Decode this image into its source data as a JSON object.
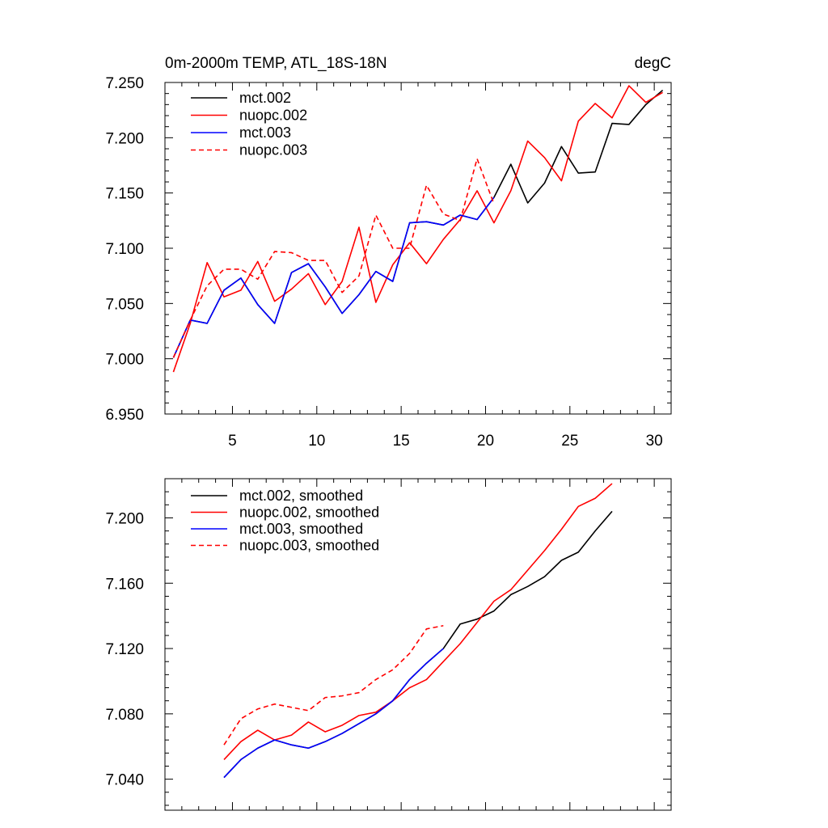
{
  "chart_data": [
    {
      "type": "line",
      "title": "0m-2000m TEMP, ATL_18S-18N",
      "units_label": "degC",
      "xlabel": "",
      "ylabel": "",
      "xlim": [
        1,
        31
      ],
      "ylim": [
        6.95,
        7.25
      ],
      "x_major_ticks": [
        5,
        10,
        15,
        20,
        25,
        30
      ],
      "x_tick_labels": [
        "5",
        "10",
        "15",
        "20",
        "25",
        "30"
      ],
      "y_major_ticks": [
        6.95,
        7.0,
        7.05,
        7.1,
        7.15,
        7.2,
        7.25
      ],
      "y_tick_labels": [
        "6.950",
        "7.000",
        "7.050",
        "7.100",
        "7.150",
        "7.200",
        "7.250"
      ],
      "legend_position": "top-left",
      "series": [
        {
          "name": "mct.002",
          "color": "#000000",
          "dash": "solid",
          "x": [
            1.5,
            2.5,
            3.5,
            4.5,
            5.5,
            6.5,
            7.5,
            8.5,
            9.5,
            10.5,
            11.5,
            12.5,
            13.5,
            14.5,
            15.5,
            16.5,
            17.5,
            18.5,
            19.5,
            20.5,
            21.5,
            22.5,
            23.5,
            24.5,
            25.5,
            26.5,
            27.5,
            28.5,
            29.5,
            30.5
          ],
          "values": [
            7.001,
            7.035,
            7.032,
            7.062,
            7.073,
            7.049,
            7.032,
            7.078,
            7.086,
            7.065,
            7.041,
            7.058,
            7.079,
            7.07,
            7.123,
            7.124,
            7.121,
            7.13,
            7.126,
            7.146,
            7.176,
            7.141,
            7.159,
            7.192,
            7.168,
            7.169,
            7.213,
            7.212,
            7.23,
            7.243
          ]
        },
        {
          "name": "nuopc.002",
          "color": "#ff0000",
          "dash": "solid",
          "x": [
            1.5,
            2.5,
            3.5,
            4.5,
            5.5,
            6.5,
            7.5,
            8.5,
            9.5,
            10.5,
            11.5,
            12.5,
            13.5,
            14.5,
            15.5,
            16.5,
            17.5,
            18.5,
            19.5,
            20.5,
            21.5,
            22.5,
            23.5,
            24.5,
            25.5,
            26.5,
            27.5,
            28.5,
            29.5,
            30.5
          ],
          "values": [
            6.988,
            7.032,
            7.087,
            7.056,
            7.062,
            7.088,
            7.052,
            7.063,
            7.077,
            7.049,
            7.07,
            7.119,
            7.051,
            7.085,
            7.105,
            7.086,
            7.108,
            7.126,
            7.152,
            7.123,
            7.152,
            7.197,
            7.182,
            7.161,
            7.215,
            7.231,
            7.218,
            7.247,
            7.232,
            7.241
          ]
        },
        {
          "name": "mct.003",
          "color": "#0000ff",
          "dash": "solid",
          "x": [
            1.5,
            2.5,
            3.5,
            4.5,
            5.5,
            6.5,
            7.5,
            8.5,
            9.5,
            10.5,
            11.5,
            12.5,
            13.5,
            14.5,
            15.5,
            16.5,
            17.5,
            18.5,
            19.5,
            20.5
          ],
          "values": [
            7.001,
            7.035,
            7.032,
            7.062,
            7.073,
            7.049,
            7.032,
            7.078,
            7.086,
            7.065,
            7.041,
            7.058,
            7.079,
            7.07,
            7.123,
            7.124,
            7.121,
            7.13,
            7.126,
            7.146
          ]
        },
        {
          "name": "nuopc.003",
          "color": "#ff0000",
          "dash": "dashed",
          "x": [
            1.5,
            2.5,
            3.5,
            4.5,
            5.5,
            6.5,
            7.5,
            8.5,
            9.5,
            10.5,
            11.5,
            12.5,
            13.5,
            14.5,
            15.5,
            16.5,
            17.5,
            18.5,
            19.5,
            20.5
          ],
          "values": [
            7.001,
            7.035,
            7.066,
            7.081,
            7.081,
            7.072,
            7.097,
            7.096,
            7.089,
            7.089,
            7.06,
            7.075,
            7.13,
            7.1,
            7.1,
            7.157,
            7.131,
            7.125,
            7.181,
            7.14
          ]
        }
      ]
    },
    {
      "type": "line",
      "title": "",
      "xlabel": "",
      "ylabel": "",
      "xlim": [
        1,
        31
      ],
      "ylim": [
        7.021,
        7.224
      ],
      "x_major_ticks": [
        5,
        10,
        15,
        20,
        25,
        30
      ],
      "x_tick_labels": [],
      "y_major_ticks": [
        7.04,
        7.08,
        7.12,
        7.16,
        7.2
      ],
      "y_tick_labels": [
        "7.040",
        "7.080",
        "7.120",
        "7.160",
        "7.200"
      ],
      "legend_position": "top-left",
      "series": [
        {
          "name": "mct.002, smoothed",
          "color": "#000000",
          "dash": "solid",
          "x": [
            4.5,
            5.5,
            6.5,
            7.5,
            8.5,
            9.5,
            10.5,
            11.5,
            12.5,
            13.5,
            14.5,
            15.5,
            16.5,
            17.5,
            18.5,
            19.5,
            20.5,
            21.5,
            22.5,
            23.5,
            24.5,
            25.5,
            26.5,
            27.5
          ],
          "values": [
            7.041,
            7.052,
            7.059,
            7.064,
            7.061,
            7.059,
            7.063,
            7.068,
            7.074,
            7.08,
            7.088,
            7.101,
            7.111,
            7.12,
            7.135,
            7.138,
            7.143,
            7.153,
            7.158,
            7.164,
            7.174,
            7.179,
            7.192,
            7.204
          ]
        },
        {
          "name": "nuopc.002, smoothed",
          "color": "#ff0000",
          "dash": "solid",
          "x": [
            4.5,
            5.5,
            6.5,
            7.5,
            8.5,
            9.5,
            10.5,
            11.5,
            12.5,
            13.5,
            14.5,
            15.5,
            16.5,
            17.5,
            18.5,
            19.5,
            20.5,
            21.5,
            22.5,
            23.5,
            24.5,
            25.5,
            26.5,
            27.5
          ],
          "values": [
            7.052,
            7.063,
            7.07,
            7.064,
            7.067,
            7.075,
            7.069,
            7.073,
            7.079,
            7.081,
            7.088,
            7.096,
            7.101,
            7.112,
            7.123,
            7.136,
            7.149,
            7.156,
            7.168,
            7.18,
            7.193,
            7.207,
            7.212,
            7.221
          ]
        },
        {
          "name": "mct.003, smoothed",
          "color": "#0000ff",
          "dash": "solid",
          "x": [
            4.5,
            5.5,
            6.5,
            7.5,
            8.5,
            9.5,
            10.5,
            11.5,
            12.5,
            13.5,
            14.5,
            15.5,
            16.5,
            17.5
          ],
          "values": [
            7.041,
            7.052,
            7.059,
            7.064,
            7.061,
            7.059,
            7.063,
            7.068,
            7.074,
            7.08,
            7.088,
            7.101,
            7.111,
            7.12
          ]
        },
        {
          "name": "nuopc.003, smoothed",
          "color": "#ff0000",
          "dash": "dashed",
          "x": [
            4.5,
            5.5,
            6.5,
            7.5,
            8.5,
            9.5,
            10.5,
            11.5,
            12.5,
            13.5,
            14.5,
            15.5,
            16.5,
            17.5
          ],
          "values": [
            7.061,
            7.077,
            7.083,
            7.086,
            7.084,
            7.082,
            7.09,
            7.091,
            7.093,
            7.101,
            7.107,
            7.117,
            7.132,
            7.134
          ]
        }
      ]
    }
  ]
}
